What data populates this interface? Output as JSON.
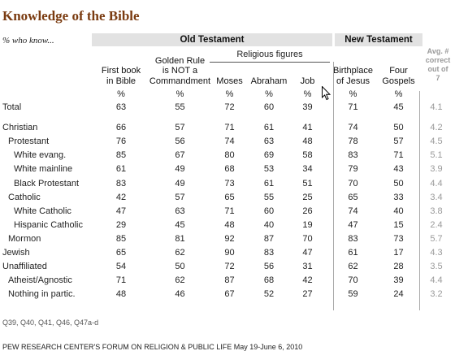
{
  "title": "Knowledge of the Bible",
  "subtitle": "% who know...",
  "groups": {
    "old": "Old Testament",
    "new": "New Testament",
    "religious_figures": "Religious figures"
  },
  "columns": [
    {
      "l1": "",
      "l2": "First book",
      "l3": "in Bible"
    },
    {
      "l1": "Golden Rule",
      "l2": "is NOT a",
      "l3": "Commandment"
    },
    {
      "l1": "",
      "l2": "",
      "l3": "Moses"
    },
    {
      "l1": "",
      "l2": "",
      "l3": "Abraham"
    },
    {
      "l1": "",
      "l2": "",
      "l3": "Job"
    },
    {
      "l1": "",
      "l2": "Birthplace",
      "l3": "of Jesus"
    },
    {
      "l1": "",
      "l2": "Four",
      "l3": "Gospels"
    }
  ],
  "avg_header": [
    "Avg. #",
    "correct",
    "out of",
    "7"
  ],
  "pct_sign": "%",
  "rows": [
    {
      "label": "Total",
      "indent": 0,
      "v": [
        "63",
        "55",
        "72",
        "60",
        "39",
        "71",
        "45"
      ],
      "avg": "4.1",
      "gap": true
    },
    {
      "label": "Christian",
      "indent": 0,
      "v": [
        "66",
        "57",
        "71",
        "61",
        "41",
        "74",
        "50"
      ],
      "avg": "4.2"
    },
    {
      "label": "Protestant",
      "indent": 1,
      "v": [
        "76",
        "56",
        "74",
        "63",
        "48",
        "78",
        "57"
      ],
      "avg": "4.5"
    },
    {
      "label": "White evang.",
      "indent": 2,
      "v": [
        "85",
        "67",
        "80",
        "69",
        "58",
        "83",
        "71"
      ],
      "avg": "5.1"
    },
    {
      "label": "White mainline",
      "indent": 2,
      "v": [
        "61",
        "49",
        "68",
        "53",
        "34",
        "79",
        "43"
      ],
      "avg": "3.9"
    },
    {
      "label": "Black Protestant",
      "indent": 2,
      "v": [
        "83",
        "49",
        "73",
        "61",
        "51",
        "70",
        "50"
      ],
      "avg": "4.4"
    },
    {
      "label": "Catholic",
      "indent": 1,
      "v": [
        "42",
        "57",
        "65",
        "55",
        "25",
        "65",
        "33"
      ],
      "avg": "3.4"
    },
    {
      "label": "White Catholic",
      "indent": 2,
      "v": [
        "47",
        "63",
        "71",
        "60",
        "26",
        "74",
        "40"
      ],
      "avg": "3.8"
    },
    {
      "label": "Hispanic Catholic",
      "indent": 2,
      "v": [
        "29",
        "45",
        "48",
        "40",
        "19",
        "47",
        "15"
      ],
      "avg": "2.4"
    },
    {
      "label": "Mormon",
      "indent": 1,
      "v": [
        "85",
        "81",
        "92",
        "87",
        "70",
        "83",
        "73"
      ],
      "avg": "5.7"
    },
    {
      "label": "Jewish",
      "indent": 0,
      "v": [
        "65",
        "62",
        "90",
        "83",
        "47",
        "61",
        "17"
      ],
      "avg": "4.3"
    },
    {
      "label": "Unaffiliated",
      "indent": 0,
      "v": [
        "54",
        "50",
        "72",
        "56",
        "31",
        "62",
        "28"
      ],
      "avg": "3.5"
    },
    {
      "label": "Atheist/Agnostic",
      "indent": 1,
      "v": [
        "71",
        "62",
        "87",
        "68",
        "42",
        "70",
        "39"
      ],
      "avg": "4.4"
    },
    {
      "label": "Nothing in partic.",
      "indent": 1,
      "v": [
        "48",
        "46",
        "67",
        "52",
        "27",
        "59",
        "24"
      ],
      "avg": "3.2"
    }
  ],
  "questions": "Q39, Q40, Q41, Q46, Q47a-d",
  "source": "PEW RESEARCH CENTER'S FORUM ON RELIGION & PUBLIC LIFE May 19-June 6, 2010"
}
